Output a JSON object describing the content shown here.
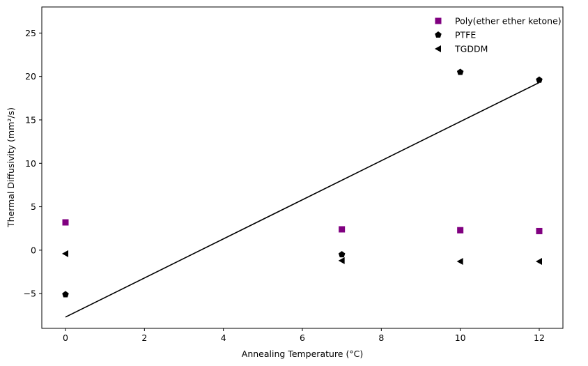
{
  "chart_data": {
    "type": "scatter",
    "title": "",
    "xlabel": "Annealing Temperature (°C)",
    "ylabel": "Thermal Diffusivity (mm²/s)",
    "xlim": [
      -0.6,
      12.6
    ],
    "ylim": [
      -9,
      28
    ],
    "xticks": [
      0,
      2,
      4,
      6,
      8,
      10,
      12
    ],
    "yticks": [
      -5,
      0,
      5,
      10,
      15,
      20,
      25
    ],
    "xtick_labels": [
      "0",
      "2",
      "4",
      "6",
      "8",
      "10",
      "12"
    ],
    "ytick_labels": [
      "−5",
      "0",
      "5",
      "10",
      "15",
      "20",
      "25"
    ],
    "grid": false,
    "legend_position": "top-right",
    "series": [
      {
        "name": "Poly(ether ether ketone)",
        "marker": "square",
        "color": "#800080",
        "x": [
          0,
          7,
          10,
          12
        ],
        "y": [
          3.2,
          2.4,
          2.3,
          2.2
        ]
      },
      {
        "name": "PTFE",
        "marker": "pentagon",
        "color": "#000000",
        "x": [
          0,
          7,
          10,
          12
        ],
        "y": [
          -5.1,
          -0.5,
          20.5,
          19.6
        ]
      },
      {
        "name": "TGDDM",
        "marker": "triangle-left",
        "color": "#000000",
        "x": [
          0,
          7,
          10,
          12
        ],
        "y": [
          -0.4,
          -1.2,
          -1.3,
          -1.3
        ]
      }
    ],
    "fit_line": {
      "color": "#000000",
      "x": [
        0,
        12
      ],
      "y": [
        -7.7,
        19.3
      ]
    }
  }
}
